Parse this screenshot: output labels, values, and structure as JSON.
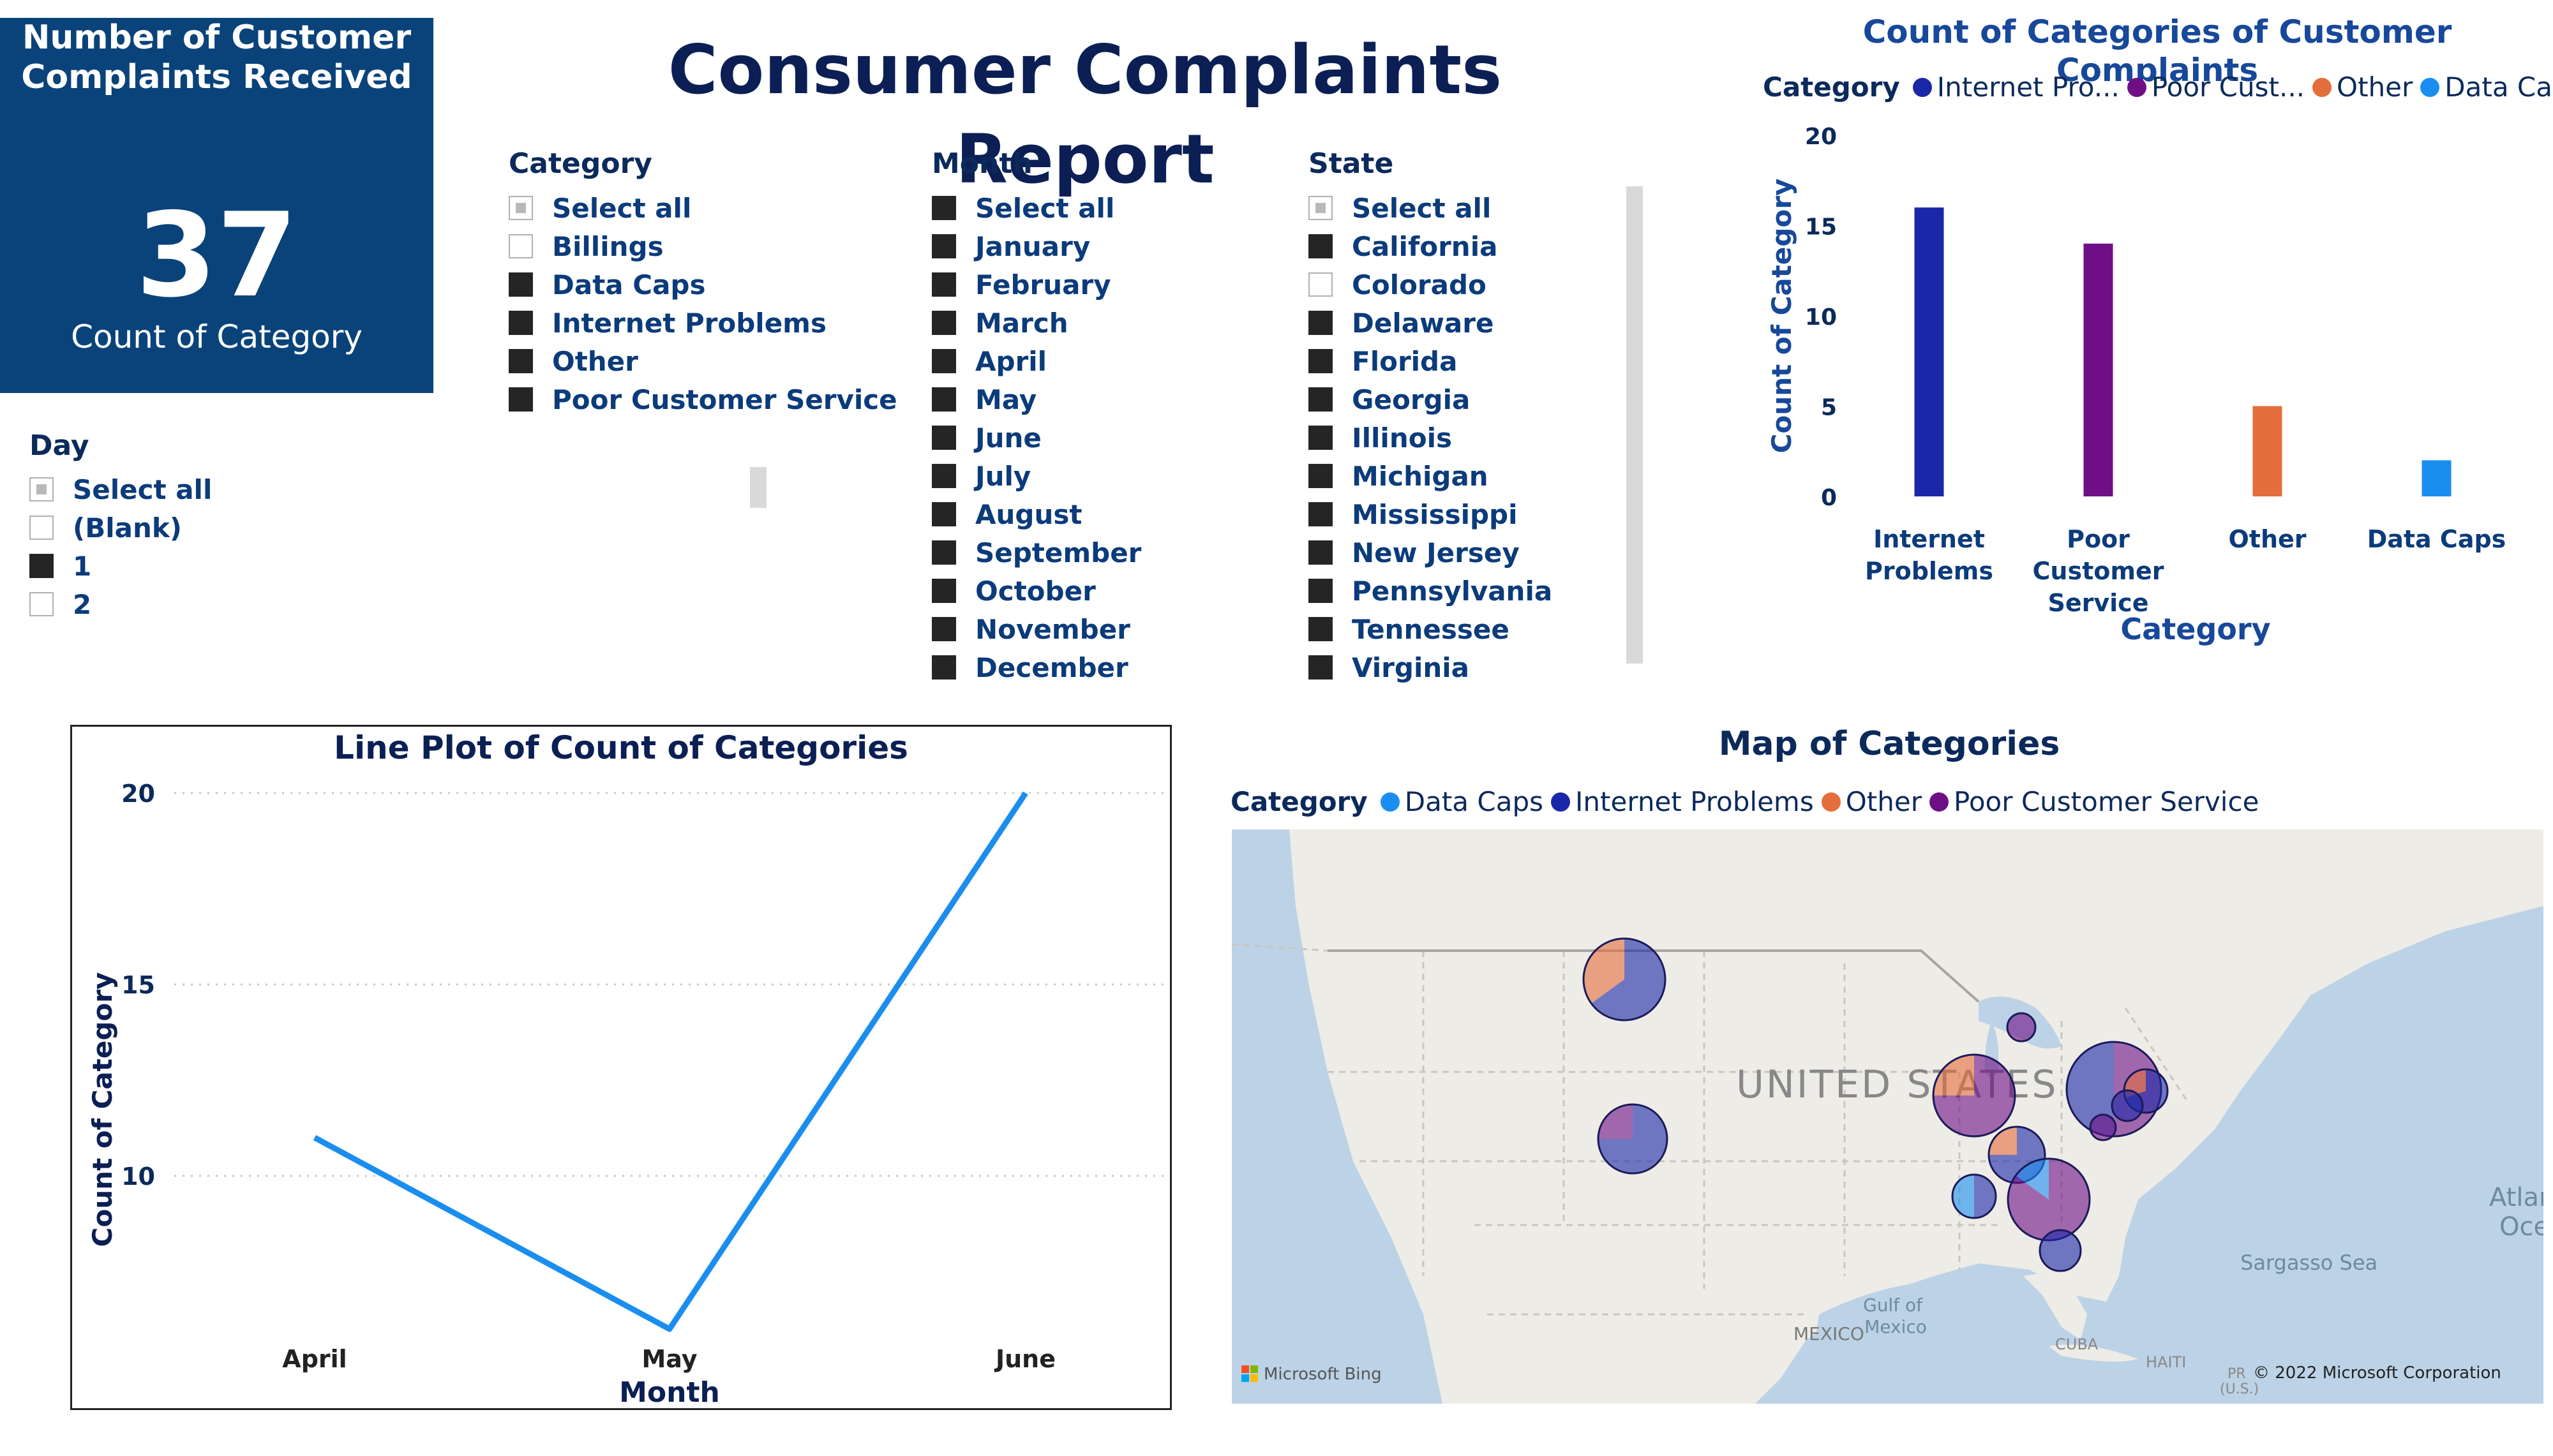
{
  "page_title": "Consumer Complaints Report",
  "kpi": {
    "title_line1": "Number of Customer",
    "title_line2": "Complaints Received",
    "value": "37",
    "label": "Count of Category"
  },
  "slicers": {
    "category": {
      "title": "Category",
      "items": [
        {
          "label": "Select all",
          "state": "partial"
        },
        {
          "label": "Billings",
          "state": "unchecked"
        },
        {
          "label": "Data Caps",
          "state": "checked"
        },
        {
          "label": "Internet Problems",
          "state": "checked"
        },
        {
          "label": "Other",
          "state": "checked"
        },
        {
          "label": "Poor Customer Service",
          "state": "checked"
        }
      ]
    },
    "month": {
      "title": "Month",
      "items": [
        {
          "label": "Select all",
          "state": "checked"
        },
        {
          "label": "January",
          "state": "checked"
        },
        {
          "label": "February",
          "state": "checked"
        },
        {
          "label": "March",
          "state": "checked"
        },
        {
          "label": "April",
          "state": "checked"
        },
        {
          "label": "May",
          "state": "checked"
        },
        {
          "label": "June",
          "state": "checked"
        },
        {
          "label": "July",
          "state": "checked"
        },
        {
          "label": "August",
          "state": "checked"
        },
        {
          "label": "September",
          "state": "checked"
        },
        {
          "label": "October",
          "state": "checked"
        },
        {
          "label": "November",
          "state": "checked"
        },
        {
          "label": "December",
          "state": "checked"
        }
      ]
    },
    "state": {
      "title": "State",
      "items": [
        {
          "label": "Select all",
          "state": "partial"
        },
        {
          "label": "California",
          "state": "checked"
        },
        {
          "label": "Colorado",
          "state": "unchecked"
        },
        {
          "label": "Delaware",
          "state": "checked"
        },
        {
          "label": "Florida",
          "state": "checked"
        },
        {
          "label": "Georgia",
          "state": "checked"
        },
        {
          "label": "Illinois",
          "state": "checked"
        },
        {
          "label": "Michigan",
          "state": "checked"
        },
        {
          "label": "Mississippi",
          "state": "checked"
        },
        {
          "label": "New Jersey",
          "state": "checked"
        },
        {
          "label": "Pennsylvania",
          "state": "checked"
        },
        {
          "label": "Tennessee",
          "state": "checked"
        },
        {
          "label": "Virginia",
          "state": "checked"
        }
      ]
    },
    "day": {
      "title": "Day",
      "items": [
        {
          "label": "Select all",
          "state": "partial"
        },
        {
          "label": "(Blank)",
          "state": "unchecked"
        },
        {
          "label": "1",
          "state": "checked"
        },
        {
          "label": "2",
          "state": "unchecked"
        }
      ]
    }
  },
  "colors": {
    "internet_problems": "#1a28a8",
    "poor_customer_service": "#6e0f86",
    "other": "#e46e3c",
    "data_caps": "#1a8ef0",
    "kpi_bg": "#0a437a",
    "line": "#1a8ef0"
  },
  "bar_chart": {
    "legend_label": "Category",
    "legend_items": [
      {
        "label": "Internet Pro...",
        "color": "#1a28a8"
      },
      {
        "label": "Poor Cust...",
        "color": "#6e0f86"
      },
      {
        "label": "Other",
        "color": "#e46e3c"
      },
      {
        "label": "Data Caps",
        "color": "#1a8ef0"
      }
    ]
  },
  "line_chart": {},
  "map": {
    "title": "Map of Categories",
    "legend_label": "Category",
    "legend_items": [
      {
        "label": "Data Caps",
        "color": "#1a8ef0"
      },
      {
        "label": "Internet Problems",
        "color": "#1a28a8"
      },
      {
        "label": "Other",
        "color": "#e46e3c"
      },
      {
        "label": "Poor Customer Service",
        "color": "#6e0f86"
      }
    ],
    "labels": {
      "country": "UNITED STATES",
      "gulf": "Gulf of Mexico",
      "mexico": "MEXICO",
      "sargasso": "Sargasso Sea",
      "atlantic": "Atlan Oce",
      "cuba": "CUBA",
      "haiti": "HAITI",
      "pr": "PR (U.S.)",
      "bing": "Microsoft Bing",
      "copyright": "© 2022 Microsoft Corporation"
    }
  },
  "chart_data": [
    {
      "type": "bar",
      "title": "Count of Categories of Customer Complaints",
      "xlabel": "Category",
      "ylabel": "Count of Category",
      "categories": [
        "Internet Problems",
        "Poor Customer Service",
        "Other",
        "Data Caps"
      ],
      "category_label_lines": [
        [
          "Internet",
          "Problems"
        ],
        [
          "Poor",
          "Customer",
          "Service"
        ],
        [
          "Other"
        ],
        [
          "Data Caps"
        ]
      ],
      "values": [
        16,
        14,
        5,
        2
      ],
      "colors": [
        "#1a28a8",
        "#6e0f86",
        "#e46e3c",
        "#1a8ef0"
      ],
      "ylim": [
        0,
        20
      ],
      "yticks": [
        0,
        5,
        10,
        15,
        20
      ],
      "legend": "top-left"
    },
    {
      "type": "line",
      "title": "Line Plot of Count of Categories",
      "xlabel": "Month",
      "ylabel": "Count of Category",
      "categories": [
        "April",
        "May",
        "June"
      ],
      "values": [
        11,
        6,
        20
      ],
      "ylim": [
        6,
        20
      ],
      "yticks": [
        10,
        15,
        20
      ],
      "grid": true
    }
  ]
}
